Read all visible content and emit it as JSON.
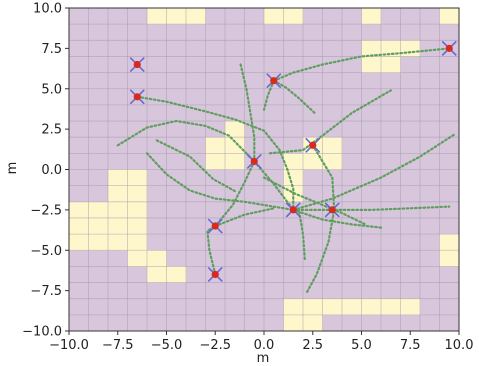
{
  "chart_data": {
    "type": "scatter",
    "xlabel": "m",
    "ylabel": "m",
    "xlim": [
      -10,
      10
    ],
    "ylim": [
      -10,
      10
    ],
    "x_ticks": [
      "−10.0",
      "−7.5",
      "−5.0",
      "−2.5",
      "0.0",
      "2.5",
      "5.0",
      "7.5",
      "10.0"
    ],
    "y_ticks": [
      "10.0",
      "7.5",
      "5.0",
      "2.5",
      "0.0",
      "−2.5",
      "−5.0",
      "−7.5",
      "−10.0"
    ],
    "grid": true,
    "grid_cell_size": 1,
    "background_color": "#d8c7dc",
    "obstacle_color": "#fff7cc",
    "grid_line_color": "#a99aad",
    "trajectory_color": "#5f9e5f",
    "marker_color": "#d82a1f",
    "cross_color": "#6a67d9",
    "occupied_cells": [
      [
        -6,
        9
      ],
      [
        -5,
        9
      ],
      [
        -4,
        9
      ],
      [
        0,
        9
      ],
      [
        1,
        9
      ],
      [
        5,
        9
      ],
      [
        9,
        9
      ],
      [
        5,
        7
      ],
      [
        6,
        7
      ],
      [
        7,
        7
      ],
      [
        5,
        6
      ],
      [
        6,
        6
      ],
      [
        -2,
        2
      ],
      [
        -3,
        1
      ],
      [
        -2,
        1
      ],
      [
        2,
        1
      ],
      [
        3,
        1
      ],
      [
        -3,
        0
      ],
      [
        -2,
        0
      ],
      [
        1,
        0
      ],
      [
        2,
        0
      ],
      [
        3,
        0
      ],
      [
        -8,
        -1
      ],
      [
        -7,
        -1
      ],
      [
        1,
        -1
      ],
      [
        -8,
        -2
      ],
      [
        -7,
        -2
      ],
      [
        1,
        -2
      ],
      [
        -10,
        -3
      ],
      [
        -9,
        -3
      ],
      [
        -8,
        -3
      ],
      [
        -7,
        -3
      ],
      [
        -10,
        -4
      ],
      [
        -9,
        -4
      ],
      [
        -8,
        -4
      ],
      [
        -7,
        -4
      ],
      [
        -10,
        -5
      ],
      [
        -9,
        -5
      ],
      [
        -8,
        -5
      ],
      [
        -7,
        -5
      ],
      [
        9,
        -5
      ],
      [
        -7,
        -6
      ],
      [
        -6,
        -6
      ],
      [
        9,
        -6
      ],
      [
        -6,
        -7
      ],
      [
        -5,
        -7
      ],
      [
        1,
        -9
      ],
      [
        2,
        -9
      ],
      [
        3,
        -9
      ],
      [
        4,
        -9
      ],
      [
        5,
        -9
      ],
      [
        6,
        -9
      ],
      [
        7,
        -9
      ],
      [
        1,
        -10
      ],
      [
        2,
        -10
      ]
    ],
    "landmarks": [
      [
        -6.5,
        6.5
      ],
      [
        -6.5,
        4.5
      ],
      [
        0.5,
        5.5
      ],
      [
        9.5,
        7.5
      ],
      [
        -0.5,
        0.5
      ],
      [
        2.5,
        1.5
      ],
      [
        -2.5,
        -3.5
      ],
      [
        1.5,
        -2.5
      ],
      [
        3.5,
        -2.5
      ],
      [
        -2.5,
        -6.5
      ]
    ],
    "trajectories": [
      [
        [
          -6.5,
          4.5
        ],
        [
          -5.0,
          4.2
        ],
        [
          -3.0,
          3.6
        ],
        [
          -1.5,
          3.1
        ],
        [
          0.0,
          2.4
        ],
        [
          0.8,
          1.2
        ],
        [
          1.2,
          0.0
        ],
        [
          1.5,
          -1.2
        ],
        [
          1.5,
          -2.5
        ]
      ],
      [
        [
          -7.5,
          1.5
        ],
        [
          -6.0,
          2.6
        ],
        [
          -4.5,
          3.0
        ],
        [
          -3.0,
          2.7
        ],
        [
          -1.8,
          2.1
        ],
        [
          -0.5,
          0.5
        ],
        [
          0.5,
          -0.9
        ],
        [
          1.5,
          -2.5
        ]
      ],
      [
        [
          -1.2,
          6.5
        ],
        [
          -0.9,
          5.0
        ],
        [
          -0.7,
          3.5
        ],
        [
          -0.5,
          2.0
        ],
        [
          -0.5,
          0.5
        ]
      ],
      [
        [
          -0.5,
          0.5
        ],
        [
          -1.0,
          -0.8
        ],
        [
          -1.6,
          -2.2
        ],
        [
          -2.5,
          -3.5
        ]
      ],
      [
        [
          -6.0,
          1.0
        ],
        [
          -5.0,
          -0.3
        ],
        [
          -3.8,
          -1.3
        ],
        [
          -2.5,
          -1.8
        ],
        [
          -1.0,
          -2.0
        ],
        [
          0.5,
          -2.3
        ],
        [
          1.5,
          -2.5
        ]
      ],
      [
        [
          1.5,
          -2.5
        ],
        [
          3.5,
          -2.5
        ],
        [
          5.5,
          -2.5
        ],
        [
          7.5,
          -2.4
        ],
        [
          9.5,
          -2.3
        ]
      ],
      [
        [
          -2.5,
          -6.5
        ],
        [
          -2.8,
          -5.0
        ],
        [
          -2.9,
          -3.8
        ],
        [
          -2.5,
          -3.5
        ]
      ],
      [
        [
          0.5,
          5.5
        ],
        [
          1.5,
          6.0
        ],
        [
          3.0,
          6.5
        ],
        [
          5.0,
          7.0
        ],
        [
          7.0,
          7.2
        ],
        [
          9.5,
          7.5
        ]
      ],
      [
        [
          0.3,
          1.0
        ],
        [
          2.0,
          1.2
        ],
        [
          3.0,
          2.1
        ],
        [
          4.5,
          3.5
        ],
        [
          6.5,
          4.9
        ]
      ],
      [
        [
          2.5,
          1.5
        ],
        [
          3.5,
          -0.5
        ],
        [
          3.6,
          -2.5
        ],
        [
          3.3,
          -4.5
        ],
        [
          2.7,
          -6.5
        ],
        [
          2.2,
          -7.6
        ]
      ],
      [
        [
          0.0,
          -0.5
        ],
        [
          1.6,
          -1.5
        ],
        [
          3.0,
          -2.2
        ],
        [
          4.0,
          -2.7
        ],
        [
          5.2,
          -3.4
        ]
      ],
      [
        [
          0.5,
          5.5
        ],
        [
          1.1,
          5.1
        ],
        [
          1.8,
          4.4
        ],
        [
          2.6,
          3.5
        ]
      ],
      [
        [
          1.5,
          -2.5
        ],
        [
          3.0,
          -3.1
        ],
        [
          4.5,
          -3.4
        ],
        [
          6.0,
          -3.6
        ]
      ],
      [
        [
          1.5,
          -2.5
        ],
        [
          3.5,
          -1.8
        ],
        [
          6.0,
          -0.5
        ],
        [
          8.0,
          0.8
        ],
        [
          9.8,
          2.2
        ]
      ],
      [
        [
          1.8,
          -2.6
        ],
        [
          2.0,
          -4.0
        ],
        [
          2.1,
          -5.6
        ]
      ],
      [
        [
          -2.5,
          -3.5
        ],
        [
          -1.0,
          -2.8
        ],
        [
          0.5,
          -2.4
        ]
      ],
      [
        [
          0.5,
          5.5
        ],
        [
          0.2,
          4.6
        ],
        [
          0.0,
          3.7
        ]
      ],
      [
        [
          -5.5,
          1.8
        ],
        [
          -3.8,
          0.8
        ],
        [
          -2.6,
          -0.6
        ],
        [
          -1.4,
          -1.4
        ]
      ]
    ]
  }
}
